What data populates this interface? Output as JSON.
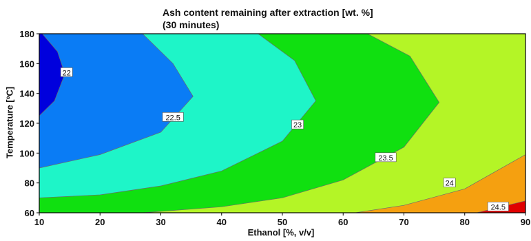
{
  "chart_data": {
    "type": "contour",
    "title_line1": "Ash content remaining after extraction [wt. %]",
    "title_line2": "(30 minutes)",
    "xlabel": "Ethanol [%, v/v]",
    "ylabel": "Temperature [ºC]",
    "xlim": [
      10,
      90
    ],
    "ylim": [
      60,
      180
    ],
    "xticks": [
      "10",
      "20",
      "30",
      "40",
      "50",
      "60",
      "70",
      "80",
      "90"
    ],
    "yticks": [
      "60",
      "80",
      "100",
      "120",
      "140",
      "160",
      "180"
    ],
    "levels": [
      22,
      22.5,
      23,
      23.5,
      24,
      24.5
    ],
    "contours": [
      {
        "level": "22",
        "points": [
          [
            10,
            125
          ],
          [
            12.5,
            135
          ],
          [
            14.2,
            153
          ],
          [
            13,
            168
          ],
          [
            10.5,
            180
          ]
        ],
        "label_at": [
          14.5,
          154
        ]
      },
      {
        "level": "22.5",
        "points": [
          [
            10,
            90
          ],
          [
            20,
            99
          ],
          [
            30,
            114
          ],
          [
            35.3,
            138
          ],
          [
            32,
            160
          ],
          [
            27,
            180
          ]
        ],
        "label_at": [
          32,
          124
        ]
      },
      {
        "level": "23",
        "points": [
          [
            10,
            70
          ],
          [
            20,
            72
          ],
          [
            30,
            78
          ],
          [
            40,
            88
          ],
          [
            50,
            108
          ],
          [
            55.5,
            135
          ],
          [
            52,
            162
          ],
          [
            46,
            180
          ]
        ],
        "label_at": [
          52.5,
          119
        ]
      },
      {
        "level": "23.5",
        "points": [
          [
            27,
            60
          ],
          [
            40,
            64
          ],
          [
            50,
            70
          ],
          [
            60,
            82
          ],
          [
            70,
            104
          ],
          [
            75.8,
            134
          ],
          [
            71,
            165
          ],
          [
            64,
            180
          ]
        ],
        "label_at": [
          67,
          97
        ]
      },
      {
        "level": "24",
        "points": [
          [
            62,
            60
          ],
          [
            70,
            65
          ],
          [
            80,
            76
          ],
          [
            90,
            99
          ]
        ],
        "label_at": [
          77.5,
          80
        ]
      },
      {
        "level": "24.5",
        "points": [
          [
            82,
            60
          ],
          [
            90,
            68
          ]
        ],
        "label_at": [
          85.5,
          64
        ]
      }
    ],
    "region_colors": [
      "#0000dd",
      "#0a7cf5",
      "#1ef5c8",
      "#10e010",
      "#b4f526",
      "#f5a010",
      "#e00000"
    ],
    "legend": "none",
    "grid": false
  }
}
